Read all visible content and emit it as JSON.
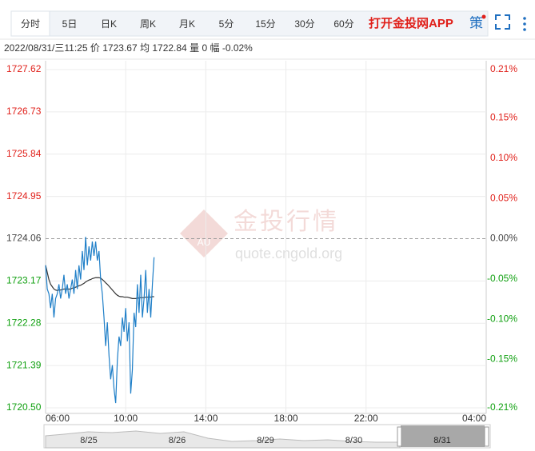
{
  "toolbar": {
    "tabs": [
      "分时",
      "5日",
      "日K",
      "周K",
      "月K",
      "5分",
      "15分",
      "30分",
      "60分"
    ],
    "active": 0,
    "app_link": "打开金投网APP",
    "strategy": "策"
  },
  "info": {
    "datetime": "2022/08/31/三11:25",
    "price_label": "价",
    "price": "1723.67",
    "avg_label": "均",
    "avg": "1722.84",
    "volume_label": "量",
    "volume": "0",
    "change_label": "幅",
    "change": "-0.02%"
  },
  "watermark": {
    "brand": "金投行情",
    "url": "quote.cngold.org",
    "logo": "AU"
  },
  "chart_data": {
    "type": "line",
    "x": [
      "06:00",
      "06:05",
      "06:10",
      "06:15",
      "06:20",
      "06:25",
      "06:30",
      "06:35",
      "06:40",
      "06:45",
      "06:50",
      "06:55",
      "07:00",
      "07:05",
      "07:10",
      "07:15",
      "07:20",
      "07:25",
      "07:30",
      "07:35",
      "07:40",
      "07:45",
      "07:50",
      "07:55",
      "08:00",
      "08:05",
      "08:10",
      "08:15",
      "08:20",
      "08:25",
      "08:30",
      "08:35",
      "08:40",
      "08:45",
      "08:50",
      "08:55",
      "09:00",
      "09:05",
      "09:10",
      "09:15",
      "09:20",
      "09:25",
      "09:30",
      "09:35",
      "09:40",
      "09:45",
      "09:50",
      "09:55",
      "10:00",
      "10:05",
      "10:10",
      "10:15",
      "10:20",
      "10:25",
      "10:30",
      "10:35",
      "10:40",
      "10:45",
      "10:50",
      "10:55",
      "11:00",
      "11:05",
      "11:10",
      "11:15",
      "11:20",
      "11:25"
    ],
    "series": [
      {
        "name": "价",
        "color": "#1f7fc8",
        "values": [
          1723.5,
          1723.0,
          1722.9,
          1722.6,
          1722.9,
          1722.4,
          1722.8,
          1722.9,
          1723.1,
          1722.8,
          1723.0,
          1723.3,
          1722.9,
          1723.1,
          1722.8,
          1723.0,
          1723.2,
          1722.9,
          1723.4,
          1723.0,
          1723.5,
          1723.2,
          1723.8,
          1723.4,
          1724.1,
          1723.5,
          1723.9,
          1723.6,
          1724.0,
          1723.7,
          1724.0,
          1723.6,
          1723.8,
          1723.2,
          1722.9,
          1722.4,
          1721.8,
          1722.3,
          1721.6,
          1721.1,
          1721.4,
          1720.9,
          1720.6,
          1721.5,
          1722.0,
          1721.8,
          1722.4,
          1722.1,
          1722.6,
          1721.9,
          1722.3,
          1720.8,
          1721.3,
          1722.5,
          1722.2,
          1723.1,
          1722.5,
          1723.3,
          1722.4,
          1722.8,
          1723.4,
          1722.5,
          1723.0,
          1722.4,
          1723.1,
          1723.67
        ]
      },
      {
        "name": "均",
        "color": "#333333",
        "values": [
          1723.5,
          1723.35,
          1723.2,
          1723.1,
          1723.05,
          1723.0,
          1722.98,
          1722.97,
          1722.98,
          1722.98,
          1722.99,
          1723.0,
          1723.0,
          1723.0,
          1723.0,
          1723.0,
          1723.02,
          1723.02,
          1723.04,
          1723.05,
          1723.07,
          1723.08,
          1723.1,
          1723.12,
          1723.15,
          1723.17,
          1723.19,
          1723.2,
          1723.22,
          1723.23,
          1723.24,
          1723.24,
          1723.24,
          1723.23,
          1723.2,
          1723.17,
          1723.13,
          1723.1,
          1723.06,
          1723.02,
          1722.98,
          1722.94,
          1722.9,
          1722.87,
          1722.85,
          1722.84,
          1722.84,
          1722.83,
          1722.83,
          1722.83,
          1722.82,
          1722.81,
          1722.8,
          1722.8,
          1722.8,
          1722.81,
          1722.81,
          1722.82,
          1722.82,
          1722.82,
          1722.83,
          1722.83,
          1722.83,
          1722.83,
          1722.84,
          1722.84
        ]
      }
    ],
    "xlim": [
      "06:00",
      "04:00"
    ],
    "xticks": [
      "06:00",
      "10:00",
      "14:00",
      "18:00",
      "22:00",
      "04:00"
    ],
    "ylim": [
      1720.5,
      1727.62
    ],
    "yticks": [
      1727.62,
      1726.73,
      1725.84,
      1724.95,
      1724.06,
      1723.17,
      1722.28,
      1721.39,
      {
        "value": 1720.5,
        "label": "1720.50"
      }
    ],
    "y2lim": [
      -0.21,
      0.21
    ],
    "y2ticks": [
      {
        "value": 0.21,
        "label": "0.21%"
      },
      {
        "value": 0.15,
        "label": "0.15%"
      },
      {
        "value": 0.1,
        "label": "0.10%"
      },
      {
        "value": 0.05,
        "label": "0.05%"
      },
      {
        "value": 0,
        "label": "0.00%"
      },
      {
        "value": -0.05,
        "label": "-0.05%"
      },
      {
        "value": -0.1,
        "label": "-0.10%"
      },
      {
        "value": -0.15,
        "label": "-0.15%"
      },
      {
        "value": -0.21,
        "label": "-0.21%"
      }
    ],
    "up_color": "#e0201a",
    "down_color": "#10a010",
    "flat_color": "#444444",
    "grid": true
  },
  "navigator": {
    "dates": [
      "8/25",
      "8/26",
      "8/29",
      "8/30",
      "8/31"
    ],
    "selected": 4
  }
}
